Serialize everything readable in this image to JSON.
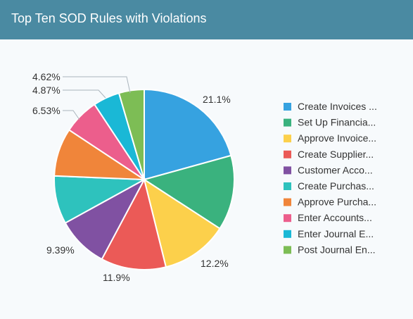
{
  "header": {
    "title": "Top Ten SOD Rules with Violations"
  },
  "chart_data": {
    "type": "pie",
    "legend_position": "right",
    "slices": [
      {
        "label": "Create Invoices ...",
        "value": 21.1,
        "value_label": "21.1%",
        "color": "#36a2e0"
      },
      {
        "label": "Set Up Financia...",
        "value": 13.7,
        "value_label": "",
        "color": "#3ab27e"
      },
      {
        "label": "Approve Invoice...",
        "value": 12.2,
        "value_label": "12.2%",
        "color": "#fcd04b"
      },
      {
        "label": "Create Supplier...",
        "value": 11.9,
        "value_label": "11.9%",
        "color": "#eb5a57"
      },
      {
        "label": "Customer Acco...",
        "value": 9.39,
        "value_label": "9.39%",
        "color": "#8051a2"
      },
      {
        "label": "Create Purchas...",
        "value": 8.8,
        "value_label": "",
        "color": "#2ec2bd"
      },
      {
        "label": "Approve Purcha...",
        "value": 8.8,
        "value_label": "",
        "color": "#f0853a"
      },
      {
        "label": "Enter Accounts...",
        "value": 6.53,
        "value_label": "6.53%",
        "color": "#ec5e8c"
      },
      {
        "label": "Enter Journal E...",
        "value": 4.87,
        "value_label": "4.87%",
        "color": "#1ab8d6"
      },
      {
        "label": "Post Journal En...",
        "value": 4.62,
        "value_label": "4.62%",
        "color": "#7dbd55"
      }
    ]
  }
}
